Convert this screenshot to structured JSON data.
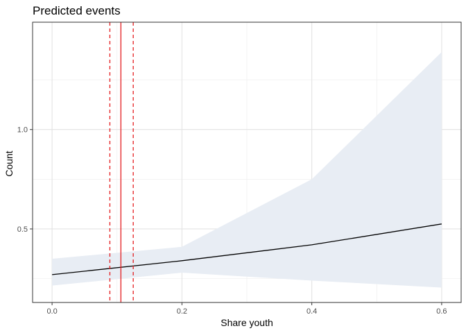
{
  "chart_data": {
    "type": "line",
    "title": "Predicted events",
    "xlabel": "Share youth",
    "ylabel": "Count",
    "xlim": [
      -0.03,
      0.63
    ],
    "ylim": [
      0.13,
      1.54
    ],
    "x_ticks": [
      0.0,
      0.2,
      0.4,
      0.6
    ],
    "x_tick_labels": [
      "0.0",
      "0.2",
      "0.4",
      "0.6"
    ],
    "x_minor_ticks": [
      0.1,
      0.3,
      0.5
    ],
    "y_ticks": [
      0.5,
      1.0
    ],
    "y_tick_labels": [
      "0.5",
      "1.0"
    ],
    "y_minor_ticks": [
      0.25,
      0.75,
      1.25
    ],
    "grid": true,
    "series": [
      {
        "type": "line",
        "color": "#000000",
        "x": [
          0.0,
          0.2,
          0.4,
          0.6
        ],
        "y": [
          0.27,
          0.34,
          0.42,
          0.525
        ]
      }
    ],
    "ribbon": {
      "color": "#e8edf4",
      "x": [
        0.0,
        0.2,
        0.4,
        0.6
      ],
      "lower": [
        0.215,
        0.28,
        0.24,
        0.205
      ],
      "upper": [
        0.35,
        0.41,
        0.75,
        1.39
      ]
    },
    "vlines": [
      {
        "x": 0.106,
        "color": "#e41a1c",
        "style": "solid"
      },
      {
        "x": 0.089,
        "color": "#e41a1c",
        "style": "dashed"
      },
      {
        "x": 0.125,
        "color": "#e41a1c",
        "style": "dashed"
      }
    ]
  }
}
